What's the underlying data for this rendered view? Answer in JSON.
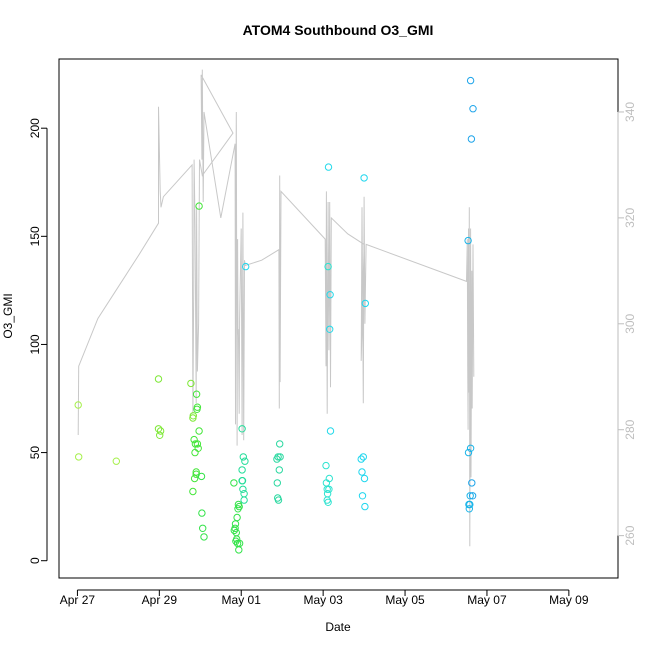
{
  "chart_data": {
    "type": "scatter",
    "title": "ATOM4 Southbound O3_GMI",
    "xlabel": "Date",
    "ylabel": "O3_GMI",
    "y2label": "",
    "x_ticks": [
      "Apr 27",
      "Apr 29",
      "May 01",
      "May 03",
      "May 05",
      "May 07",
      "May 09"
    ],
    "y_ticks": [
      0,
      50,
      100,
      150,
      200
    ],
    "y2_ticks": [
      260,
      280,
      300,
      320,
      340
    ],
    "xlim_days": [
      -0.45,
      13.2
    ],
    "ylim": [
      -8,
      232
    ],
    "y2lim": [
      252,
      350
    ],
    "colors": {
      "line": "#c8c8c8",
      "axis": "#000000",
      "secondary_axis": "#bebebe"
    },
    "series": [
      {
        "color": "#a6f04b",
        "points": [
          [
            0.02,
            72
          ],
          [
            0.03,
            48
          ],
          [
            0.95,
            46
          ]
        ]
      },
      {
        "color": "#7ee836",
        "points": [
          [
            1.98,
            84
          ],
          [
            1.98,
            61
          ],
          [
            2.01,
            58
          ],
          [
            2.03,
            60
          ],
          [
            2.77,
            82
          ],
          [
            2.83,
            67
          ],
          [
            2.82,
            66
          ]
        ]
      },
      {
        "color": "#44e639",
        "points": [
          [
            2.82,
            32
          ],
          [
            2.85,
            56
          ],
          [
            2.86,
            38
          ],
          [
            2.87,
            50
          ],
          [
            2.88,
            54
          ],
          [
            2.91,
            77
          ],
          [
            2.92,
            70
          ],
          [
            2.93,
            71
          ],
          [
            2.9,
            41
          ],
          [
            2.9,
            40
          ],
          [
            2.93,
            54
          ],
          [
            2.95,
            52
          ],
          [
            2.97,
            60
          ],
          [
            2.97,
            164
          ]
        ]
      },
      {
        "color": "#33e349",
        "points": [
          [
            3.03,
            39
          ],
          [
            3.04,
            22
          ],
          [
            3.06,
            15
          ],
          [
            3.09,
            11
          ],
          [
            3.82,
            36
          ],
          [
            3.83,
            14
          ],
          [
            3.85,
            15
          ],
          [
            3.86,
            17
          ],
          [
            3.87,
            9
          ],
          [
            3.88,
            13
          ],
          [
            3.89,
            10
          ],
          [
            3.9,
            20
          ],
          [
            3.91,
            8
          ],
          [
            3.92,
            24
          ],
          [
            3.93,
            26
          ],
          [
            3.94,
            5
          ],
          [
            3.95,
            25
          ],
          [
            3.96,
            8
          ]
        ]
      },
      {
        "color": "#22dd99",
        "points": [
          [
            4.02,
            61
          ],
          [
            4.02,
            42
          ],
          [
            4.03,
            37
          ],
          [
            4.04,
            33
          ],
          [
            4.05,
            48
          ],
          [
            4.07,
            28
          ],
          [
            4.07,
            31
          ],
          [
            4.09,
            46
          ],
          [
            4.02,
            37
          ]
        ]
      },
      {
        "color": "#2ad8a0",
        "points": [
          [
            4.87,
            47
          ],
          [
            4.88,
            36
          ],
          [
            4.89,
            29
          ],
          [
            4.9,
            48
          ],
          [
            4.91,
            28
          ],
          [
            4.93,
            42
          ],
          [
            4.94,
            54
          ],
          [
            4.95,
            48
          ]
        ]
      },
      {
        "color": "#2ee3d0",
        "points": [
          [
            6.07,
            44
          ],
          [
            6.08,
            36
          ],
          [
            6.1,
            33
          ],
          [
            6.1,
            28
          ],
          [
            6.11,
            31
          ],
          [
            6.12,
            27
          ],
          [
            6.14,
            33
          ],
          [
            6.15,
            38
          ],
          [
            6.12,
            136
          ]
        ]
      },
      {
        "color": "#22d9ea",
        "points": [
          [
            6.13,
            182
          ],
          [
            6.17,
            123
          ],
          [
            6.16,
            107
          ],
          [
            6.18,
            60
          ]
        ]
      },
      {
        "color": "#1fd6ee",
        "points": [
          [
            6.93,
            47
          ],
          [
            6.95,
            41
          ],
          [
            6.96,
            30
          ],
          [
            6.98,
            48
          ],
          [
            7.01,
            38
          ],
          [
            7.02,
            25
          ],
          [
            7.0,
            177
          ],
          [
            7.03,
            119
          ],
          [
            4.11,
            136
          ]
        ]
      },
      {
        "color": "#1ab4e8",
        "points": [
          [
            9.54,
            148
          ],
          [
            9.55,
            50
          ],
          [
            9.56,
            26
          ],
          [
            9.57,
            24
          ],
          [
            9.58,
            26
          ],
          [
            9.59,
            30
          ],
          [
            9.6,
            52
          ]
        ]
      },
      {
        "color": "#1da4ea",
        "points": [
          [
            9.6,
            222
          ],
          [
            9.62,
            195
          ],
          [
            9.66,
            209
          ],
          [
            9.63,
            36
          ],
          [
            9.65,
            30
          ]
        ]
      }
    ],
    "line_y2": [
      [
        0.02,
        279
      ],
      [
        0.03,
        292
      ],
      [
        0.5,
        301
      ],
      [
        1.0,
        307
      ],
      [
        1.5,
        313
      ],
      [
        1.98,
        319
      ],
      [
        1.98,
        341
      ],
      [
        2.02,
        325
      ],
      [
        2.04,
        322
      ],
      [
        2.1,
        324
      ],
      [
        2.8,
        330
      ],
      [
        2.82,
        283
      ],
      [
        2.84,
        306
      ],
      [
        2.85,
        331
      ],
      [
        2.87,
        319
      ],
      [
        2.9,
        285
      ],
      [
        2.91,
        322
      ],
      [
        2.93,
        291
      ],
      [
        2.96,
        300
      ],
      [
        2.98,
        331
      ],
      [
        3.05,
        328
      ],
      [
        3.8,
        336
      ],
      [
        3.02,
        347
      ],
      [
        3.04,
        331
      ],
      [
        3.05,
        348
      ],
      [
        3.07,
        323
      ],
      [
        3.09,
        340
      ],
      [
        3.5,
        320
      ],
      [
        3.85,
        334
      ],
      [
        3.86,
        281
      ],
      [
        3.87,
        323
      ],
      [
        3.88,
        340
      ],
      [
        3.9,
        277
      ],
      [
        3.91,
        316
      ],
      [
        3.92,
        298
      ],
      [
        3.93,
        299
      ],
      [
        3.95,
        283
      ],
      [
        3.96,
        301
      ],
      [
        4.0,
        318
      ],
      [
        4.02,
        279
      ],
      [
        4.04,
        321
      ],
      [
        4.06,
        278
      ],
      [
        4.08,
        312
      ],
      [
        4.1,
        311
      ],
      [
        4.5,
        312
      ],
      [
        4.92,
        314
      ],
      [
        4.93,
        284
      ],
      [
        4.94,
        328
      ],
      [
        4.95,
        289
      ],
      [
        4.97,
        325
      ],
      [
        6.05,
        316
      ],
      [
        6.07,
        292
      ],
      [
        6.08,
        325
      ],
      [
        6.1,
        283
      ],
      [
        6.12,
        323
      ],
      [
        6.14,
        295
      ],
      [
        6.16,
        323
      ],
      [
        6.18,
        288
      ],
      [
        6.2,
        320
      ],
      [
        6.6,
        317
      ],
      [
        7.0,
        315
      ],
      [
        6.93,
        293
      ],
      [
        6.95,
        322
      ],
      [
        6.98,
        285
      ],
      [
        7.0,
        324
      ],
      [
        7.02,
        300
      ],
      [
        7.05,
        315
      ],
      [
        9.5,
        308
      ],
      [
        9.52,
        316
      ],
      [
        9.53,
        292
      ],
      [
        9.54,
        280
      ],
      [
        9.55,
        318
      ],
      [
        9.56,
        287
      ],
      [
        9.57,
        322
      ],
      [
        9.58,
        258
      ],
      [
        9.6,
        318
      ],
      [
        9.61,
        271
      ],
      [
        9.63,
        310
      ],
      [
        9.64,
        284
      ],
      [
        9.66,
        315
      ],
      [
        9.68,
        290
      ]
    ]
  }
}
